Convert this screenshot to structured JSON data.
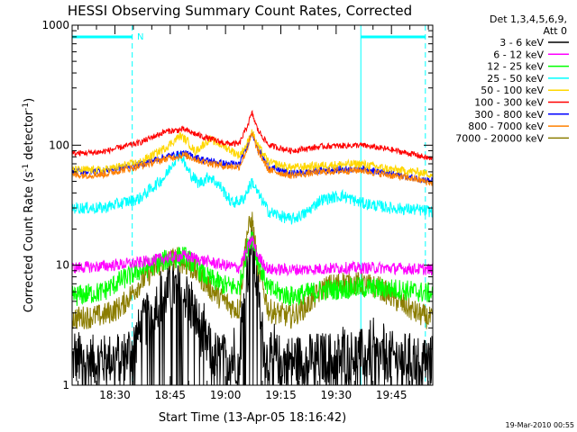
{
  "chart_data": {
    "type": "line",
    "title": "HESSI Observing Summary Count Rates, Corrected",
    "xlabel": "Start Time (13-Apr-05 18:16:42)",
    "ylabel_main": "Corrected Count Rate (s",
    "ylabel_sup1": "-1",
    "ylabel_mid": " detector",
    "ylabel_sup2": "-1",
    "ylabel_end": ")",
    "yscale": "log",
    "ylim": [
      1,
      1000
    ],
    "y_ticks": [
      {
        "value": 1,
        "label": "1"
      },
      {
        "value": 10,
        "label": "10"
      },
      {
        "value": 100,
        "label": "100"
      },
      {
        "value": 1000,
        "label": "1000"
      }
    ],
    "x_range_min": [
      16.7,
      114.5
    ],
    "x_ticks": [
      {
        "t": 28.3,
        "label": "18:30"
      },
      {
        "t": 43.3,
        "label": "18:45"
      },
      {
        "t": 58.3,
        "label": "19:00"
      },
      {
        "t": 73.3,
        "label": "19:15"
      },
      {
        "t": 88.3,
        "label": "19:30"
      },
      {
        "t": 103.3,
        "label": "19:45"
      }
    ],
    "legend": {
      "header1": "Det 1,3,4,5,6,9,",
      "header2": "Att 0",
      "entries": [
        {
          "label": "3 - 6 keV",
          "color": "#000000"
        },
        {
          "label": "6 - 12 keV",
          "color": "#ff00ff"
        },
        {
          "label": "12 - 25 keV",
          "color": "#00ff00"
        },
        {
          "label": "25 - 50 keV",
          "color": "#00ffff"
        },
        {
          "label": "50 - 100 keV",
          "color": "#ffd700"
        },
        {
          "label": "100 - 300 keV",
          "color": "#ff0000"
        },
        {
          "label": "300 - 800 keV",
          "color": "#0000ff"
        },
        {
          "label": "800 - 7000 keV",
          "color": "#ff8000"
        },
        {
          "label": "7000 - 20000 keV",
          "color": "#8b7d00"
        }
      ]
    },
    "night_boundaries": [
      16.7,
      33.0,
      95.0,
      112.5
    ],
    "saa_label": "N",
    "series": [
      {
        "color": "#ff0000",
        "noise": 0.025,
        "points": [
          [
            16.7,
            85
          ],
          [
            25,
            88
          ],
          [
            35,
            105
          ],
          [
            42,
            130
          ],
          [
            47,
            135
          ],
          [
            52,
            118
          ],
          [
            58,
            104
          ],
          [
            62,
            102
          ],
          [
            64,
            140
          ],
          [
            65.5,
            185
          ],
          [
            67,
            135
          ],
          [
            70,
            100
          ],
          [
            76,
            90
          ],
          [
            85,
            98
          ],
          [
            95,
            100
          ],
          [
            103,
            92
          ],
          [
            110,
            83
          ],
          [
            114.5,
            76
          ]
        ]
      },
      {
        "color": "#ff8000",
        "noise": 0.03,
        "points": [
          [
            16.7,
            56
          ],
          [
            25,
            57
          ],
          [
            35,
            67
          ],
          [
            42,
            77
          ],
          [
            47,
            83
          ],
          [
            52,
            73
          ],
          [
            58,
            67
          ],
          [
            62,
            66
          ],
          [
            64,
            90
          ],
          [
            65.5,
            125
          ],
          [
            67,
            90
          ],
          [
            70,
            62
          ],
          [
            76,
            56
          ],
          [
            85,
            60
          ],
          [
            95,
            62
          ],
          [
            103,
            56
          ],
          [
            110,
            52
          ],
          [
            114.5,
            48
          ]
        ]
      },
      {
        "color": "#ffd700",
        "noise": 0.035,
        "points": [
          [
            16.7,
            62
          ],
          [
            25,
            62
          ],
          [
            35,
            72
          ],
          [
            42,
            95
          ],
          [
            46,
            120
          ],
          [
            48,
            108
          ],
          [
            50,
            88
          ],
          [
            54,
            112
          ],
          [
            58,
            98
          ],
          [
            62,
            82
          ],
          [
            64,
            100
          ],
          [
            65.5,
            130
          ],
          [
            67,
            100
          ],
          [
            70,
            72
          ],
          [
            76,
            65
          ],
          [
            85,
            68
          ],
          [
            95,
            70
          ],
          [
            103,
            63
          ],
          [
            110,
            60
          ],
          [
            114.5,
            57
          ]
        ]
      },
      {
        "color": "#0000ff",
        "noise": 0.03,
        "points": [
          [
            16.7,
            60
          ],
          [
            25,
            61
          ],
          [
            35,
            69
          ],
          [
            42,
            80
          ],
          [
            47,
            86
          ],
          [
            52,
            76
          ],
          [
            58,
            70
          ],
          [
            62,
            69
          ],
          [
            64,
            95
          ],
          [
            65.5,
            130
          ],
          [
            67,
            95
          ],
          [
            70,
            66
          ],
          [
            76,
            58
          ],
          [
            85,
            62
          ],
          [
            95,
            64
          ],
          [
            103,
            58
          ],
          [
            110,
            53
          ],
          [
            114.5,
            50
          ]
        ]
      },
      {
        "color": "#00ffff",
        "noise": 0.05,
        "points": [
          [
            16.7,
            30
          ],
          [
            25,
            30
          ],
          [
            35,
            36
          ],
          [
            42,
            55
          ],
          [
            44,
            72
          ],
          [
            46,
            85
          ],
          [
            48,
            62
          ],
          [
            51,
            48
          ],
          [
            54,
            55
          ],
          [
            57,
            45
          ],
          [
            60,
            33
          ],
          [
            63,
            35
          ],
          [
            65.5,
            50
          ],
          [
            67,
            40
          ],
          [
            70,
            28
          ],
          [
            76,
            24
          ],
          [
            80,
            27
          ],
          [
            84,
            35
          ],
          [
            90,
            38
          ],
          [
            95,
            33
          ],
          [
            103,
            30
          ],
          [
            110,
            29
          ],
          [
            114.5,
            28
          ]
        ]
      },
      {
        "color": "#ff00ff",
        "noise": 0.05,
        "points": [
          [
            16.7,
            9.5
          ],
          [
            25,
            9.8
          ],
          [
            35,
            10.5
          ],
          [
            42,
            11.5
          ],
          [
            47,
            12
          ],
          [
            52,
            11
          ],
          [
            58,
            10
          ],
          [
            62,
            9.5
          ],
          [
            64,
            13
          ],
          [
            65.5,
            17
          ],
          [
            67,
            12
          ],
          [
            70,
            9.2
          ],
          [
            80,
            9.2
          ],
          [
            90,
            9.5
          ],
          [
            100,
            9.5
          ],
          [
            114.5,
            9.2
          ]
        ]
      },
      {
        "color": "#00ff00",
        "noise": 0.09,
        "points": [
          [
            16.7,
            5.5
          ],
          [
            25,
            6
          ],
          [
            30,
            7.5
          ],
          [
            35,
            9
          ],
          [
            42,
            11
          ],
          [
            47,
            12
          ],
          [
            50,
            10
          ],
          [
            53,
            8
          ],
          [
            58,
            6.8
          ],
          [
            62,
            6.5
          ],
          [
            64,
            13
          ],
          [
            65.5,
            18
          ],
          [
            67,
            11
          ],
          [
            70,
            6.3
          ],
          [
            76,
            5.5
          ],
          [
            85,
            6.2
          ],
          [
            95,
            6.5
          ],
          [
            105,
            6.3
          ],
          [
            114.5,
            5.8
          ]
        ]
      },
      {
        "color": "#8b7d00",
        "noise": 0.1,
        "points": [
          [
            16.7,
            3.6
          ],
          [
            25,
            3.8
          ],
          [
            30,
            4.5
          ],
          [
            35,
            7
          ],
          [
            40,
            10
          ],
          [
            45,
            11.5
          ],
          [
            50,
            9
          ],
          [
            55,
            6
          ],
          [
            60,
            4.5
          ],
          [
            62,
            4.3
          ],
          [
            64,
            18
          ],
          [
            65.5,
            24
          ],
          [
            67,
            10
          ],
          [
            70,
            4.2
          ],
          [
            76,
            3.7
          ],
          [
            80,
            4.5
          ],
          [
            85,
            6.5
          ],
          [
            90,
            7.2
          ],
          [
            95,
            7
          ],
          [
            100,
            6.5
          ],
          [
            105,
            5
          ],
          [
            110,
            4
          ],
          [
            114.5,
            3.5
          ]
        ]
      },
      {
        "color": "#000000",
        "noise": 0.22,
        "points": [
          [
            16.7,
            1.6
          ],
          [
            25,
            1.6
          ],
          [
            32,
            1.8
          ],
          [
            36,
            3.2
          ],
          [
            40,
            5
          ],
          [
            44,
            6.5
          ],
          [
            47,
            6
          ],
          [
            50,
            3.8
          ],
          [
            53,
            2.2
          ],
          [
            56,
            1.7
          ],
          [
            60,
            1.6
          ],
          [
            62,
            1.7
          ],
          [
            64,
            8
          ],
          [
            65.5,
            15
          ],
          [
            67,
            6
          ],
          [
            69,
            1.7
          ],
          [
            75,
            1.6
          ],
          [
            85,
            1.7
          ],
          [
            95,
            1.8
          ],
          [
            105,
            1.7
          ],
          [
            114.5,
            1.6
          ]
        ]
      }
    ]
  },
  "footer": {
    "timestamp": "19-Mar-2010 00:55"
  }
}
